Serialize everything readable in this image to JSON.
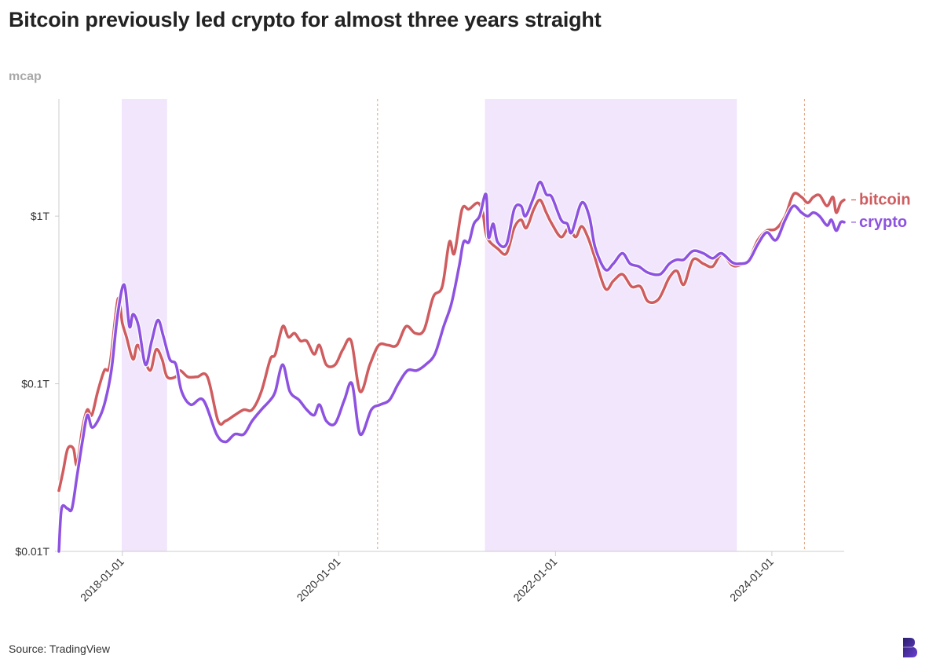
{
  "title": "Bitcoin previously led crypto for almost three years straight",
  "source": "Source: TradingView",
  "logo": "brand-logo",
  "colors": {
    "bitcoin": "#cf5c5f",
    "crypto": "#8e52e0",
    "shade": "#f1e6fc",
    "event_line": "#e0a080",
    "axis": "#cccccc"
  },
  "chart_data": {
    "type": "line",
    "title": "Bitcoin previously led crypto for almost three years straight",
    "ylabel": "mcap",
    "xlabel": "",
    "yscale": "log",
    "ylim": [
      0.01,
      5
    ],
    "xlim": [
      "2017-06-01",
      "2024-09-01"
    ],
    "yticks": [
      {
        "value": 1,
        "label": "$1T"
      },
      {
        "value": 0.1,
        "label": "$0.1T"
      },
      {
        "value": 0.01,
        "label": "$0.01T"
      }
    ],
    "xticks": [
      {
        "value": "2018-01-01",
        "label": "2018-01-01"
      },
      {
        "value": "2020-01-01",
        "label": "2020-01-01"
      },
      {
        "value": "2022-01-01",
        "label": "2022-01-01"
      },
      {
        "value": "2024-01-01",
        "label": "2024-01-01"
      }
    ],
    "shaded_periods": [
      {
        "start": "2017-12-30",
        "end": "2018-06-01"
      },
      {
        "start": "2021-05-08",
        "end": "2023-09-05"
      }
    ],
    "event_lines": [
      "2020-05-11",
      "2024-04-20"
    ],
    "grid": false,
    "legend": "end-of-line labels",
    "series": [
      {
        "name": "bitcoin",
        "points": [
          [
            "2017-06-01",
            0.023
          ],
          [
            "2017-06-15",
            0.03
          ],
          [
            "2017-07-01",
            0.041
          ],
          [
            "2017-07-20",
            0.041
          ],
          [
            "2017-08-01",
            0.033
          ],
          [
            "2017-08-20",
            0.055
          ],
          [
            "2017-09-05",
            0.07
          ],
          [
            "2017-09-20",
            0.065
          ],
          [
            "2017-10-10",
            0.09
          ],
          [
            "2017-11-01",
            0.12
          ],
          [
            "2017-11-20",
            0.13
          ],
          [
            "2017-12-17",
            0.32
          ],
          [
            "2018-01-01",
            0.23
          ],
          [
            "2018-01-15",
            0.19
          ],
          [
            "2018-02-06",
            0.14
          ],
          [
            "2018-02-20",
            0.17
          ],
          [
            "2018-03-10",
            0.15
          ],
          [
            "2018-04-05",
            0.12
          ],
          [
            "2018-04-25",
            0.16
          ],
          [
            "2018-05-15",
            0.14
          ],
          [
            "2018-06-01",
            0.11
          ],
          [
            "2018-06-30",
            0.11
          ],
          [
            "2018-07-15",
            0.12
          ],
          [
            "2018-08-10",
            0.11
          ],
          [
            "2018-09-10",
            0.11
          ],
          [
            "2018-10-15",
            0.11
          ],
          [
            "2018-11-20",
            0.06
          ],
          [
            "2018-12-15",
            0.06
          ],
          [
            "2019-01-15",
            0.065
          ],
          [
            "2019-02-15",
            0.07
          ],
          [
            "2019-03-15",
            0.07
          ],
          [
            "2019-04-15",
            0.09
          ],
          [
            "2019-05-15",
            0.14
          ],
          [
            "2019-06-01",
            0.15
          ],
          [
            "2019-06-26",
            0.22
          ],
          [
            "2019-07-15",
            0.19
          ],
          [
            "2019-08-05",
            0.2
          ],
          [
            "2019-08-25",
            0.18
          ],
          [
            "2019-09-15",
            0.18
          ],
          [
            "2019-10-10",
            0.15
          ],
          [
            "2019-10-28",
            0.17
          ],
          [
            "2019-11-20",
            0.13
          ],
          [
            "2019-12-20",
            0.13
          ],
          [
            "2020-01-15",
            0.16
          ],
          [
            "2020-02-12",
            0.18
          ],
          [
            "2020-03-13",
            0.09
          ],
          [
            "2020-04-15",
            0.13
          ],
          [
            "2020-05-15",
            0.17
          ],
          [
            "2020-06-15",
            0.17
          ],
          [
            "2020-07-15",
            0.17
          ],
          [
            "2020-08-15",
            0.22
          ],
          [
            "2020-09-15",
            0.2
          ],
          [
            "2020-10-15",
            0.21
          ],
          [
            "2020-11-15",
            0.33
          ],
          [
            "2020-12-15",
            0.38
          ],
          [
            "2021-01-08",
            0.7
          ],
          [
            "2021-01-25",
            0.6
          ],
          [
            "2021-02-20",
            1.1
          ],
          [
            "2021-03-15",
            1.1
          ],
          [
            "2021-04-14",
            1.2
          ],
          [
            "2021-05-01",
            1.05
          ],
          [
            "2021-05-15",
            0.75
          ],
          [
            "2021-06-20",
            0.64
          ],
          [
            "2021-07-20",
            0.6
          ],
          [
            "2021-08-15",
            0.85
          ],
          [
            "2021-09-07",
            0.95
          ],
          [
            "2021-09-25",
            0.85
          ],
          [
            "2021-10-20",
            1.1
          ],
          [
            "2021-11-10",
            1.25
          ],
          [
            "2021-12-01",
            1.05
          ],
          [
            "2021-12-20",
            0.9
          ],
          [
            "2022-01-20",
            0.75
          ],
          [
            "2022-02-15",
            0.85
          ],
          [
            "2022-03-10",
            0.75
          ],
          [
            "2022-03-30",
            0.87
          ],
          [
            "2022-04-20",
            0.75
          ],
          [
            "2022-05-12",
            0.58
          ],
          [
            "2022-06-18",
            0.37
          ],
          [
            "2022-07-15",
            0.41
          ],
          [
            "2022-08-15",
            0.45
          ],
          [
            "2022-09-15",
            0.38
          ],
          [
            "2022-10-15",
            0.38
          ],
          [
            "2022-11-09",
            0.31
          ],
          [
            "2022-12-15",
            0.32
          ],
          [
            "2023-01-20",
            0.43
          ],
          [
            "2023-02-15",
            0.47
          ],
          [
            "2023-03-10",
            0.39
          ],
          [
            "2023-04-10",
            0.55
          ],
          [
            "2023-05-15",
            0.52
          ],
          [
            "2023-06-15",
            0.5
          ],
          [
            "2023-07-15",
            0.59
          ],
          [
            "2023-08-20",
            0.51
          ],
          [
            "2023-09-15",
            0.51
          ],
          [
            "2023-10-15",
            0.55
          ],
          [
            "2023-11-15",
            0.72
          ],
          [
            "2023-12-15",
            0.82
          ],
          [
            "2024-01-15",
            0.84
          ],
          [
            "2024-02-15",
            1.0
          ],
          [
            "2024-03-14",
            1.35
          ],
          [
            "2024-04-10",
            1.3
          ],
          [
            "2024-05-01",
            1.2
          ],
          [
            "2024-05-20",
            1.3
          ],
          [
            "2024-06-10",
            1.33
          ],
          [
            "2024-07-05",
            1.15
          ],
          [
            "2024-07-25",
            1.3
          ],
          [
            "2024-08-05",
            1.05
          ],
          [
            "2024-08-20",
            1.2
          ],
          [
            "2024-09-01",
            1.25
          ]
        ]
      },
      {
        "name": "crypto",
        "points": [
          [
            "2017-06-01",
            0.01
          ],
          [
            "2017-06-10",
            0.018
          ],
          [
            "2017-06-30",
            0.018
          ],
          [
            "2017-07-15",
            0.018
          ],
          [
            "2017-08-01",
            0.028
          ],
          [
            "2017-08-20",
            0.046
          ],
          [
            "2017-09-05",
            0.065
          ],
          [
            "2017-09-20",
            0.055
          ],
          [
            "2017-10-10",
            0.06
          ],
          [
            "2017-11-01",
            0.075
          ],
          [
            "2017-11-25",
            0.12
          ],
          [
            "2017-12-15",
            0.25
          ],
          [
            "2018-01-07",
            0.39
          ],
          [
            "2018-01-25",
            0.22
          ],
          [
            "2018-02-06",
            0.26
          ],
          [
            "2018-02-25",
            0.22
          ],
          [
            "2018-03-20",
            0.13
          ],
          [
            "2018-04-10",
            0.18
          ],
          [
            "2018-05-01",
            0.24
          ],
          [
            "2018-05-20",
            0.19
          ],
          [
            "2018-06-10",
            0.14
          ],
          [
            "2018-07-01",
            0.13
          ],
          [
            "2018-07-20",
            0.09
          ],
          [
            "2018-08-20",
            0.075
          ],
          [
            "2018-10-01",
            0.08
          ],
          [
            "2018-11-15",
            0.05
          ],
          [
            "2018-12-15",
            0.045
          ],
          [
            "2019-01-15",
            0.05
          ],
          [
            "2019-02-15",
            0.05
          ],
          [
            "2019-03-15",
            0.06
          ],
          [
            "2019-04-15",
            0.07
          ],
          [
            "2019-05-15",
            0.08
          ],
          [
            "2019-06-01",
            0.09
          ],
          [
            "2019-06-26",
            0.13
          ],
          [
            "2019-07-20",
            0.09
          ],
          [
            "2019-08-20",
            0.08
          ],
          [
            "2019-09-15",
            0.07
          ],
          [
            "2019-10-10",
            0.065
          ],
          [
            "2019-10-28",
            0.075
          ],
          [
            "2019-11-20",
            0.06
          ],
          [
            "2019-12-20",
            0.058
          ],
          [
            "2020-01-20",
            0.08
          ],
          [
            "2020-02-15",
            0.1
          ],
          [
            "2020-03-13",
            0.05
          ],
          [
            "2020-04-20",
            0.07
          ],
          [
            "2020-05-20",
            0.075
          ],
          [
            "2020-06-20",
            0.08
          ],
          [
            "2020-07-20",
            0.1
          ],
          [
            "2020-08-20",
            0.12
          ],
          [
            "2020-09-20",
            0.12
          ],
          [
            "2020-10-20",
            0.13
          ],
          [
            "2020-11-20",
            0.15
          ],
          [
            "2020-12-20",
            0.22
          ],
          [
            "2021-01-15",
            0.3
          ],
          [
            "2021-02-10",
            0.5
          ],
          [
            "2021-02-25",
            0.7
          ],
          [
            "2021-03-15",
            0.7
          ],
          [
            "2021-04-01",
            0.9
          ],
          [
            "2021-04-20",
            1.0
          ],
          [
            "2021-05-12",
            1.35
          ],
          [
            "2021-05-20",
            0.75
          ],
          [
            "2021-06-05",
            0.9
          ],
          [
            "2021-06-20",
            0.7
          ],
          [
            "2021-07-20",
            0.68
          ],
          [
            "2021-08-15",
            1.1
          ],
          [
            "2021-09-07",
            1.15
          ],
          [
            "2021-09-22",
            1.0
          ],
          [
            "2021-10-20",
            1.3
          ],
          [
            "2021-11-10",
            1.6
          ],
          [
            "2021-12-01",
            1.35
          ],
          [
            "2021-12-20",
            1.3
          ],
          [
            "2022-01-20",
            0.95
          ],
          [
            "2022-02-10",
            0.9
          ],
          [
            "2022-02-25",
            0.8
          ],
          [
            "2022-03-30",
            1.2
          ],
          [
            "2022-04-25",
            1.0
          ],
          [
            "2022-05-15",
            0.65
          ],
          [
            "2022-06-18",
            0.48
          ],
          [
            "2022-07-15",
            0.52
          ],
          [
            "2022-08-15",
            0.6
          ],
          [
            "2022-09-10",
            0.52
          ],
          [
            "2022-10-10",
            0.5
          ],
          [
            "2022-11-09",
            0.46
          ],
          [
            "2022-12-20",
            0.45
          ],
          [
            "2023-01-20",
            0.52
          ],
          [
            "2023-02-15",
            0.55
          ],
          [
            "2023-03-10",
            0.55
          ],
          [
            "2023-04-10",
            0.62
          ],
          [
            "2023-05-15",
            0.6
          ],
          [
            "2023-06-15",
            0.56
          ],
          [
            "2023-07-15",
            0.6
          ],
          [
            "2023-08-20",
            0.53
          ],
          [
            "2023-09-15",
            0.52
          ],
          [
            "2023-10-15",
            0.54
          ],
          [
            "2023-11-15",
            0.68
          ],
          [
            "2023-12-15",
            0.8
          ],
          [
            "2024-01-15",
            0.72
          ],
          [
            "2024-02-15",
            0.95
          ],
          [
            "2024-03-14",
            1.15
          ],
          [
            "2024-04-10",
            1.05
          ],
          [
            "2024-05-01",
            1.0
          ],
          [
            "2024-05-20",
            1.05
          ],
          [
            "2024-06-10",
            1.0
          ],
          [
            "2024-07-05",
            0.88
          ],
          [
            "2024-07-20",
            0.95
          ],
          [
            "2024-08-05",
            0.82
          ],
          [
            "2024-08-20",
            0.92
          ],
          [
            "2024-09-01",
            0.92
          ]
        ]
      }
    ]
  }
}
